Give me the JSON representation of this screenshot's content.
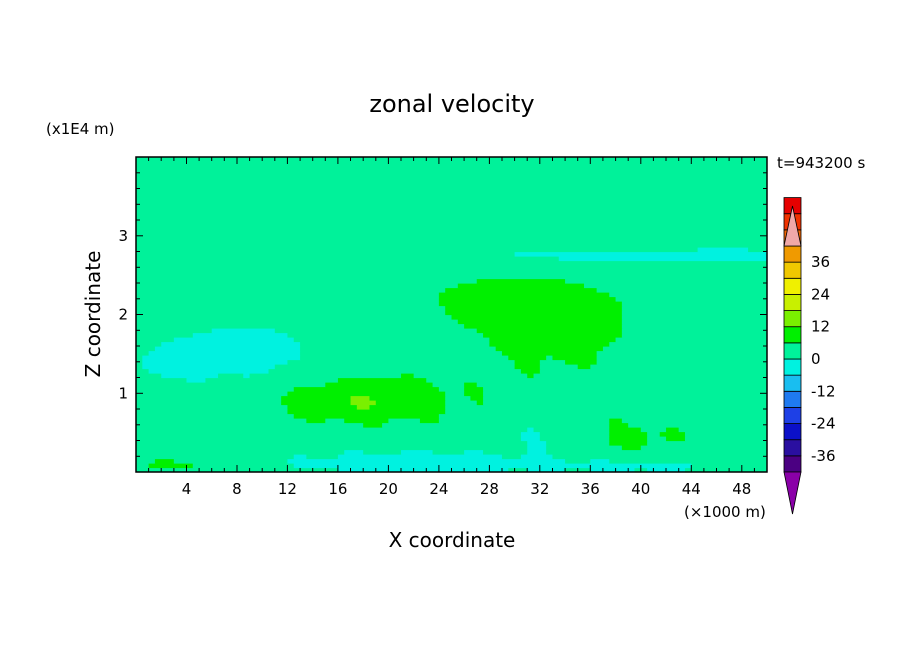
{
  "chart_data": {
    "type": "heatmap",
    "title": "zonal velocity",
    "xlabel": "X coordinate",
    "ylabel": "Z coordinate",
    "x_unit": "(×1000 m)",
    "y_unit": "(x1E4 m)",
    "time_label": "t=943200 s",
    "xlim": [
      0,
      50
    ],
    "ylim": [
      0,
      4
    ],
    "x_ticks": [
      4,
      8,
      12,
      16,
      20,
      24,
      28,
      32,
      36,
      40,
      44,
      48
    ],
    "y_ticks": [
      1,
      2,
      3
    ],
    "grid": false,
    "colorbar": {
      "placement": "right",
      "ticks": [
        36,
        24,
        12,
        0,
        -12,
        -24,
        -36
      ],
      "range": [
        -42,
        42
      ],
      "step": 6,
      "extend": "both",
      "colors": [
        "#4b0082",
        "#2a0fa0",
        "#0b10c8",
        "#1e40e6",
        "#1f7af0",
        "#19bef0",
        "#00f2e0",
        "#00f29a",
        "#00f000",
        "#7af000",
        "#c8f000",
        "#f0f000",
        "#f0c800",
        "#f09a00",
        "#f06400",
        "#f03200",
        "#e60000"
      ],
      "low_extend_color": "#8a00a8",
      "high_extend_color": "#f0a8a8"
    },
    "regions": [
      {
        "band": "surface layer near z=0",
        "x_range": [
          0,
          50
        ],
        "z_range": [
          0,
          0.3
        ],
        "value_range": [
          -12,
          6
        ]
      },
      {
        "band": "positive core",
        "x_range": [
          12,
          24
        ],
        "z_range": [
          0.7,
          1.1
        ],
        "value_range": [
          6,
          12
        ]
      },
      {
        "band": "negative patch",
        "x_range": [
          6,
          12
        ],
        "z_range": [
          1.2,
          1.8
        ],
        "value_range": [
          -6,
          0
        ]
      },
      {
        "band": "upper layer",
        "x_range": [
          0,
          50
        ],
        "z_range": [
          2.4,
          4
        ],
        "value_range": [
          0,
          6
        ]
      },
      {
        "band": "lower-right positive",
        "x_range": [
          34,
          46
        ],
        "z_range": [
          0.2,
          0.8
        ],
        "value_range": [
          6,
          12
        ]
      }
    ]
  }
}
